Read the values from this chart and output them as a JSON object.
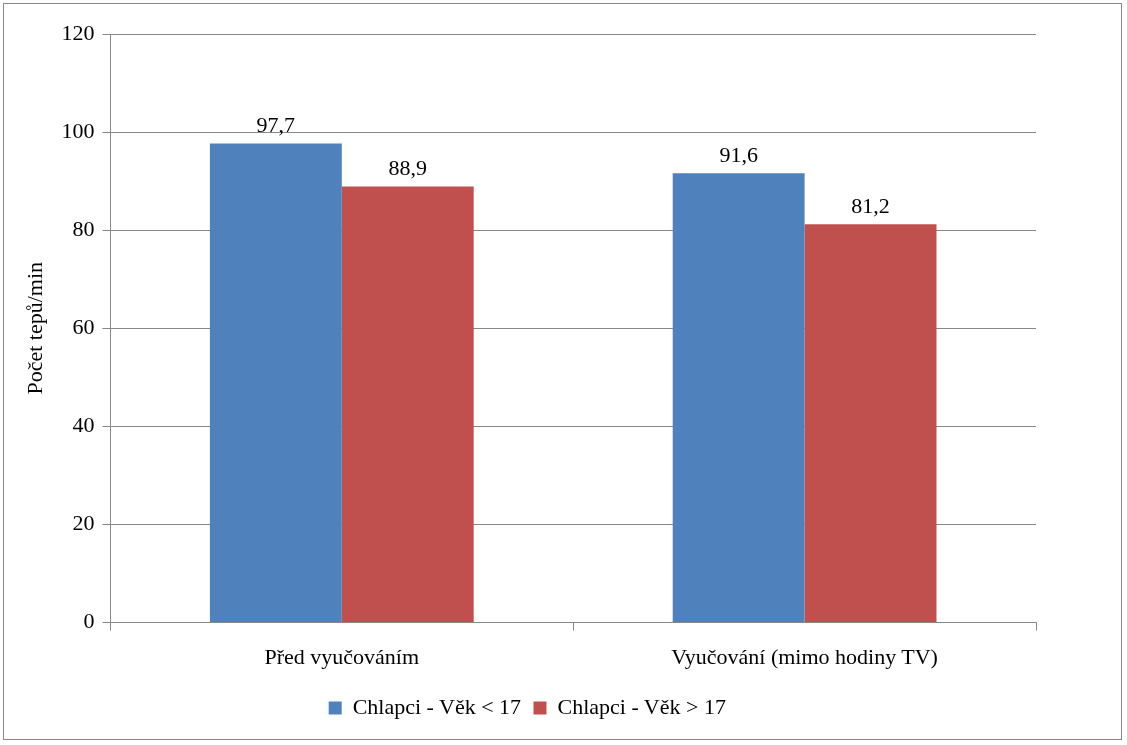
{
  "chart_data": {
    "type": "bar",
    "ylabel": "Počet tepů/min",
    "categories": [
      "Před vyučováním",
      "Vyučování (mimo hodiny TV)"
    ],
    "series": [
      {
        "name": "Chlapci - Věk < 17",
        "color": "#4f81bd",
        "values": [
          97.7,
          91.6
        ],
        "value_labels": [
          "97,7",
          "91,6"
        ]
      },
      {
        "name": "Chlapci - Věk > 17",
        "color": "#c0504d",
        "values": [
          88.9,
          81.2
        ],
        "value_labels": [
          "88,9",
          "81,2"
        ]
      }
    ],
    "ylim": [
      0,
      120
    ],
    "yticks": [
      0,
      20,
      40,
      60,
      80,
      100,
      120
    ],
    "grid": "y",
    "legend": "bottom"
  }
}
